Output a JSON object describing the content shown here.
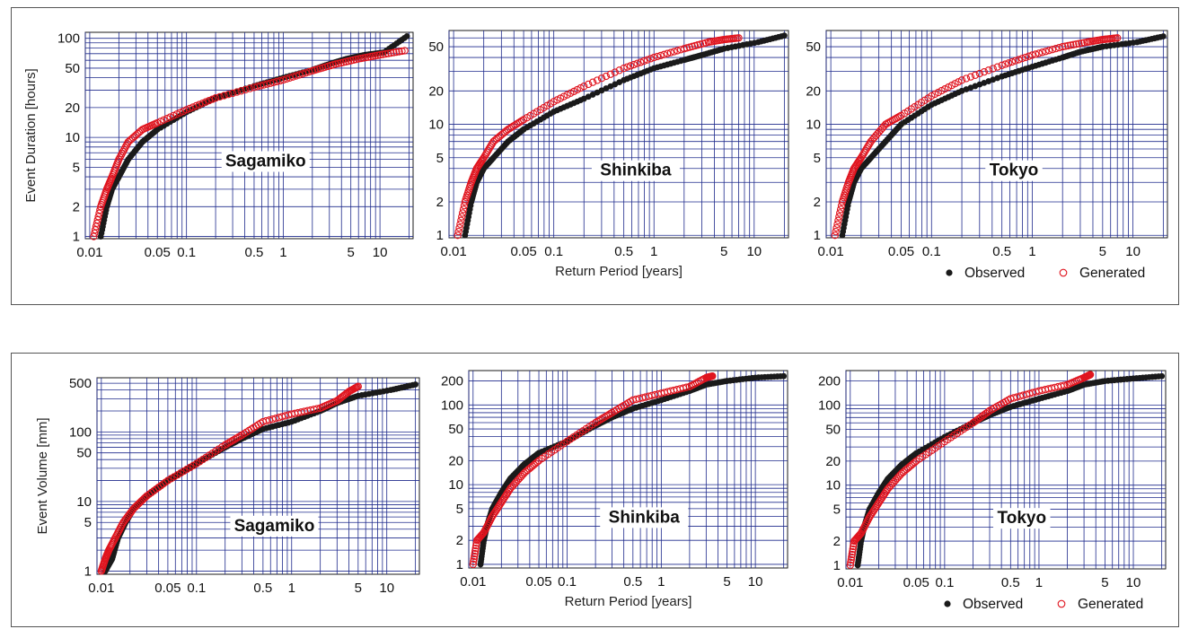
{
  "colors": {
    "observed": "#1a1a1a",
    "generated": "#e0141e",
    "grid": "#1e2a8c"
  },
  "chart_data": [
    {
      "type": "scatter",
      "row": "duration",
      "site": "Sagamiko",
      "ylabel": "Event Duration [hours]",
      "xlabel": "",
      "xscale": "log",
      "yscale": "log",
      "xlim": [
        0.009,
        22
      ],
      "ylim": [
        0.95,
        115
      ],
      "xticks": [
        "0.01",
        "0.05",
        "0.1",
        "0.5",
        "1",
        "5",
        "10"
      ],
      "xtickvals": [
        0.01,
        0.05,
        0.1,
        0.5,
        1,
        5,
        10
      ],
      "yticks": [
        "1",
        "2",
        "5",
        "10",
        "20",
        "50",
        "100"
      ],
      "ytickvals": [
        1,
        2,
        5,
        10,
        20,
        50,
        100
      ],
      "grid": true,
      "legend": "",
      "series": [
        {
          "name": "Observed",
          "x": [
            0.013,
            0.015,
            0.017,
            0.02,
            0.025,
            0.035,
            0.05,
            0.1,
            0.2,
            0.5,
            1,
            2,
            3,
            4.5,
            7,
            11,
            19
          ],
          "y": [
            1,
            2,
            3,
            4,
            6,
            9,
            12,
            18,
            25,
            33,
            40,
            48,
            55,
            62,
            68,
            72,
            105
          ]
        },
        {
          "name": "Generated",
          "x": [
            0.011,
            0.013,
            0.015,
            0.017,
            0.02,
            0.025,
            0.035,
            0.05,
            0.1,
            0.2,
            0.5,
            1,
            2,
            3.5,
            6,
            10,
            18
          ],
          "y": [
            1,
            2,
            3,
            4,
            6,
            9,
            12,
            14,
            19,
            25,
            32,
            38,
            47,
            55,
            62,
            68,
            75
          ]
        }
      ]
    },
    {
      "type": "scatter",
      "row": "duration",
      "site": "Shinkiba",
      "ylabel": "",
      "xlabel": "Return Period [years]",
      "xscale": "log",
      "yscale": "log",
      "xlim": [
        0.009,
        22
      ],
      "ylim": [
        0.95,
        70
      ],
      "xticks": [
        "0.01",
        "0.05",
        "0.1",
        "0.5",
        "1",
        "5",
        "10"
      ],
      "xtickvals": [
        0.01,
        0.05,
        0.1,
        0.5,
        1,
        5,
        10
      ],
      "yticks": [
        "1",
        "2",
        "5",
        "10",
        "20",
        "50"
      ],
      "ytickvals": [
        1,
        2,
        5,
        10,
        20,
        50
      ],
      "grid": true,
      "legend": "",
      "series": [
        {
          "name": "Observed",
          "x": [
            0.013,
            0.015,
            0.017,
            0.02,
            0.025,
            0.035,
            0.05,
            0.1,
            0.2,
            0.5,
            1,
            2,
            3,
            5,
            11,
            20
          ],
          "y": [
            1,
            2,
            3,
            4,
            5,
            7,
            9,
            13,
            17,
            25,
            32,
            38,
            42,
            48,
            55,
            63
          ]
        },
        {
          "name": "Generated",
          "x": [
            0.011,
            0.013,
            0.015,
            0.017,
            0.02,
            0.025,
            0.035,
            0.05,
            0.1,
            0.2,
            0.5,
            1,
            2,
            3.5,
            5,
            7
          ],
          "y": [
            1,
            2,
            3,
            4,
            5,
            7,
            9,
            11,
            16,
            22,
            32,
            40,
            48,
            55,
            58,
            60
          ]
        }
      ]
    },
    {
      "type": "scatter",
      "row": "duration",
      "site": "Tokyo",
      "ylabel": "",
      "xlabel": "",
      "xscale": "log",
      "yscale": "log",
      "xlim": [
        0.009,
        22
      ],
      "ylim": [
        0.95,
        70
      ],
      "xticks": [
        "0.01",
        "0.05",
        "0.1",
        "0.5",
        "1",
        "5",
        "10"
      ],
      "xtickvals": [
        0.01,
        0.05,
        0.1,
        0.5,
        1,
        5,
        10
      ],
      "yticks": [
        "1",
        "2",
        "5",
        "10",
        "20",
        "50"
      ],
      "ytickvals": [
        1,
        2,
        5,
        10,
        20,
        50
      ],
      "grid": true,
      "legend": "bottom-right",
      "series": [
        {
          "name": "Observed",
          "x": [
            0.013,
            0.015,
            0.017,
            0.02,
            0.025,
            0.035,
            0.05,
            0.1,
            0.2,
            0.5,
            1,
            2,
            3,
            5,
            11,
            20
          ],
          "y": [
            1,
            2,
            3,
            4,
            5,
            7,
            10,
            15,
            20,
            27,
            33,
            40,
            45,
            50,
            55,
            62
          ]
        },
        {
          "name": "Generated",
          "x": [
            0.011,
            0.013,
            0.015,
            0.017,
            0.02,
            0.025,
            0.035,
            0.05,
            0.1,
            0.2,
            0.5,
            1,
            2,
            3.5,
            5,
            7
          ],
          "y": [
            1,
            2,
            3,
            4,
            5,
            7,
            10,
            12,
            18,
            25,
            34,
            42,
            50,
            55,
            58,
            60
          ]
        }
      ]
    },
    {
      "type": "scatter",
      "row": "volume",
      "site": "Sagamiko",
      "ylabel": "Event Volume [mm]",
      "xlabel": "",
      "xscale": "log",
      "yscale": "log",
      "xlim": [
        0.009,
        22
      ],
      "ylim": [
        0.9,
        600
      ],
      "xticks": [
        "0.01",
        "0.05",
        "0.1",
        "0.5",
        "1",
        "5",
        "10"
      ],
      "xtickvals": [
        0.01,
        0.05,
        0.1,
        0.5,
        1,
        5,
        10
      ],
      "yticks": [
        "1",
        "5",
        "10",
        "50",
        "100",
        "500"
      ],
      "ytickvals": [
        1,
        5,
        10,
        50,
        100,
        500
      ],
      "grid": true,
      "legend": "",
      "series": [
        {
          "name": "Observed",
          "x": [
            0.011,
            0.013,
            0.015,
            0.018,
            0.022,
            0.03,
            0.05,
            0.1,
            0.2,
            0.3,
            0.5,
            1,
            2,
            3,
            5,
            11,
            20
          ],
          "y": [
            1,
            1.5,
            3,
            5,
            8,
            12,
            20,
            35,
            60,
            80,
            110,
            140,
            200,
            260,
            330,
            400,
            480
          ]
        },
        {
          "name": "Generated",
          "x": [
            0.01,
            0.011,
            0.012,
            0.014,
            0.017,
            0.022,
            0.03,
            0.05,
            0.1,
            0.2,
            0.3,
            0.5,
            1,
            2,
            3,
            4,
            5
          ],
          "y": [
            1,
            1.5,
            2,
            3,
            5,
            8,
            12,
            20,
            35,
            65,
            90,
            140,
            180,
            220,
            280,
            380,
            450
          ]
        }
      ]
    },
    {
      "type": "scatter",
      "row": "volume",
      "site": "Shinkiba",
      "ylabel": "",
      "xlabel": "Return Period [years]",
      "xscale": "log",
      "yscale": "log",
      "xlim": [
        0.009,
        22
      ],
      "ylim": [
        0.9,
        270
      ],
      "xticks": [
        "0.01",
        "0.05",
        "0.1",
        "0.5",
        "1",
        "5",
        "10"
      ],
      "xtickvals": [
        0.01,
        0.05,
        0.1,
        0.5,
        1,
        5,
        10
      ],
      "yticks": [
        "1",
        "2",
        "5",
        "10",
        "20",
        "50",
        "100",
        "200"
      ],
      "ytickvals": [
        1,
        2,
        5,
        10,
        20,
        50,
        100,
        200
      ],
      "grid": true,
      "legend": "",
      "series": [
        {
          "name": "Observed",
          "x": [
            0.012,
            0.013,
            0.014,
            0.016,
            0.02,
            0.025,
            0.035,
            0.05,
            0.1,
            0.2,
            0.3,
            0.5,
            1,
            2,
            3,
            5,
            10,
            20
          ],
          "y": [
            1,
            2,
            3,
            5,
            8,
            12,
            18,
            25,
            35,
            55,
            70,
            90,
            115,
            150,
            180,
            200,
            220,
            230
          ]
        },
        {
          "name": "Generated",
          "x": [
            0.01,
            0.011,
            0.013,
            0.016,
            0.02,
            0.025,
            0.035,
            0.05,
            0.1,
            0.2,
            0.3,
            0.5,
            1,
            2,
            3,
            3.5
          ],
          "y": [
            1,
            2,
            2.5,
            4,
            6,
            9,
            14,
            20,
            35,
            60,
            80,
            115,
            140,
            170,
            220,
            230
          ]
        }
      ]
    },
    {
      "type": "scatter",
      "row": "volume",
      "site": "Tokyo",
      "ylabel": "",
      "xlabel": "",
      "xscale": "log",
      "yscale": "log",
      "xlim": [
        0.009,
        22
      ],
      "ylim": [
        0.9,
        270
      ],
      "xticks": [
        "0.01",
        "0.05",
        "0.1",
        "0.5",
        "1",
        "5",
        "10"
      ],
      "xtickvals": [
        0.01,
        0.05,
        0.1,
        0.5,
        1,
        5,
        10
      ],
      "yticks": [
        "1",
        "2",
        "5",
        "10",
        "20",
        "50",
        "100",
        "200"
      ],
      "ytickvals": [
        1,
        2,
        5,
        10,
        20,
        50,
        100,
        200
      ],
      "grid": true,
      "legend": "bottom-right",
      "series": [
        {
          "name": "Observed",
          "x": [
            0.012,
            0.013,
            0.014,
            0.016,
            0.02,
            0.025,
            0.035,
            0.05,
            0.1,
            0.2,
            0.3,
            0.5,
            1,
            2,
            3,
            5,
            10,
            20
          ],
          "y": [
            1,
            2,
            3,
            5,
            8,
            12,
            18,
            25,
            40,
            60,
            75,
            95,
            120,
            150,
            180,
            200,
            215,
            230
          ]
        },
        {
          "name": "Generated",
          "x": [
            0.01,
            0.011,
            0.013,
            0.016,
            0.02,
            0.025,
            0.035,
            0.05,
            0.1,
            0.2,
            0.3,
            0.5,
            1,
            2,
            3,
            3.5
          ],
          "y": [
            1,
            2,
            2.5,
            4,
            6,
            9,
            14,
            20,
            35,
            60,
            85,
            120,
            150,
            180,
            220,
            240
          ]
        }
      ]
    }
  ],
  "legend": {
    "observed_label": "Observed",
    "generated_label": "Generated"
  }
}
